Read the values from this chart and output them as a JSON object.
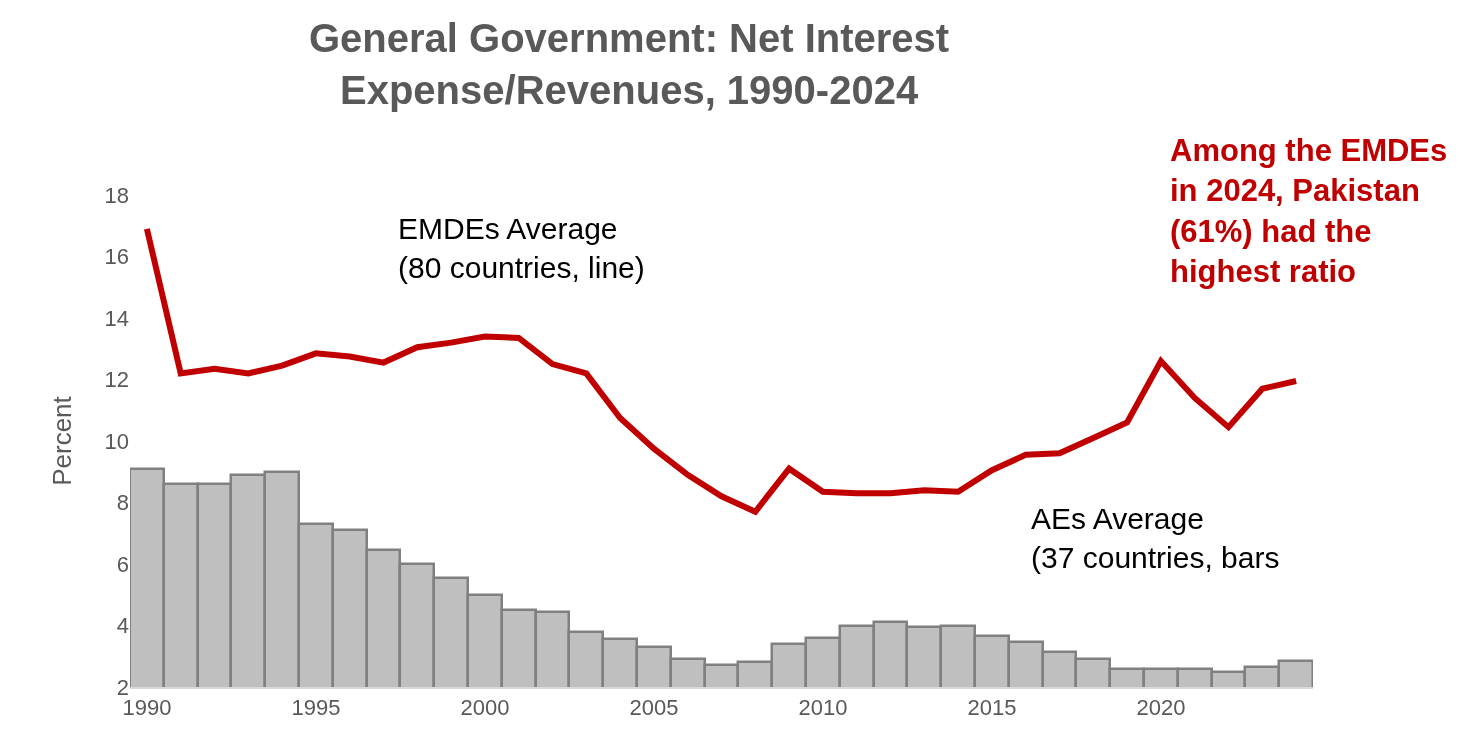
{
  "chart_data": {
    "type": "bar",
    "title": "General Government: Net Interest\nExpense/Revenues, 1990-2024",
    "ylabel": "Percent",
    "x": [
      1990,
      1991,
      1992,
      1993,
      1994,
      1995,
      1996,
      1997,
      1998,
      1999,
      2000,
      2001,
      2002,
      2003,
      2004,
      2005,
      2006,
      2007,
      2008,
      2009,
      2010,
      2011,
      2012,
      2013,
      2014,
      2015,
      2016,
      2017,
      2018,
      2019,
      2020,
      2021,
      2022,
      2023,
      2024
    ],
    "series": [
      {
        "color": "#bfbfbf",
        "values": [
          9.1,
          8.6,
          8.6,
          8.9,
          9.0,
          7.3,
          7.1,
          6.45,
          6.0,
          5.55,
          5.0,
          4.5,
          4.45,
          3.8,
          3.55,
          3.3,
          2.9,
          2.7,
          2.8,
          3.4,
          3.6,
          4.0,
          4.1,
          3.95,
          4.0,
          3.65,
          3.45,
          3.15,
          2.9,
          2.6,
          2.6,
          2.6,
          2.5,
          2.65,
          2.85
        ]
      },
      {
        "type": "line",
        "color": "#c00000",
        "values": [
          16.9,
          12.2,
          12.35,
          12.2,
          12.45,
          12.85,
          12.75,
          12.55,
          13.05,
          13.2,
          13.4,
          13.35,
          12.5,
          12.2,
          10.75,
          9.75,
          8.9,
          8.2,
          7.7,
          9.1,
          8.35,
          8.3,
          8.3,
          8.4,
          8.35,
          9.05,
          9.55,
          9.6,
          10.1,
          10.6,
          12.6,
          11.4,
          10.45,
          11.7,
          11.95
        ]
      }
    ],
    "annotations": [
      "EMDEs Average\n(80 countries, line)",
      "AEs Average\n(37 countries, bars",
      "Among the EMDEs\nin 2024, Pakistan\n(61%) had the\nhighest ratio"
    ],
    "xlim": [
      1989.5,
      2024.5
    ],
    "xticks": [
      1990,
      1995,
      2000,
      2005,
      2010,
      2015,
      2020
    ],
    "ylim": [
      2,
      18
    ],
    "yticks": [
      2,
      4,
      6,
      8,
      10,
      12,
      14,
      16,
      18
    ],
    "marker": "none",
    "line_style": "solid"
  }
}
